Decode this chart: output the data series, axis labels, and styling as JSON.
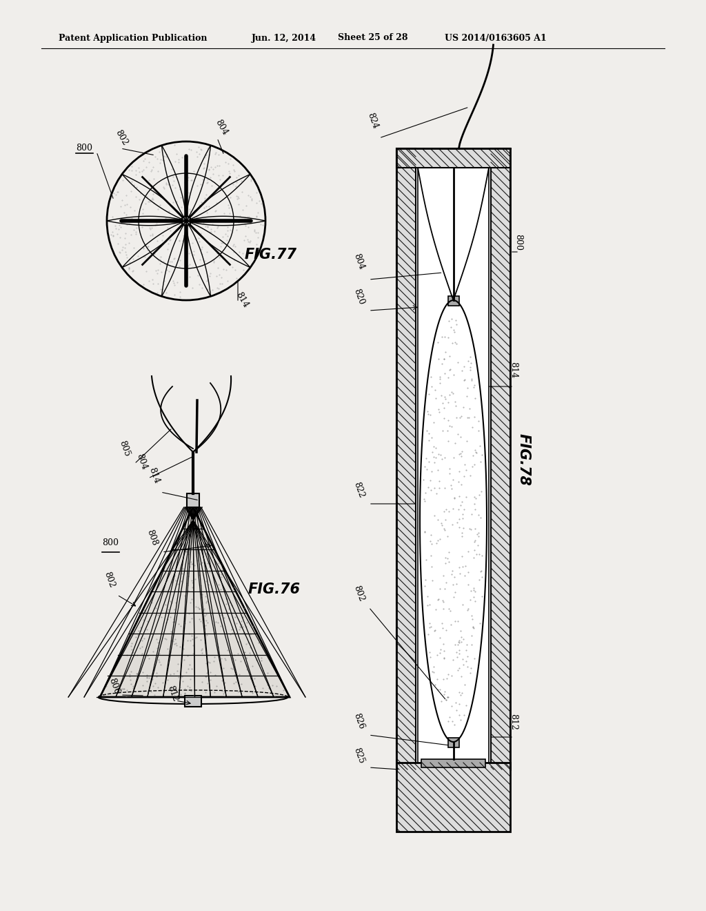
{
  "bg_color": "#f0eeeb",
  "line_color": "#000000",
  "header_text": "Patent Application Publication",
  "header_date": "Jun. 12, 2014",
  "header_sheet": "Sheet 25 of 28",
  "header_patent": "US 2014/0163605 A1",
  "fig76_label": "FIG.76",
  "fig77_label": "FIG.77",
  "fig78_label": "FIG.78"
}
